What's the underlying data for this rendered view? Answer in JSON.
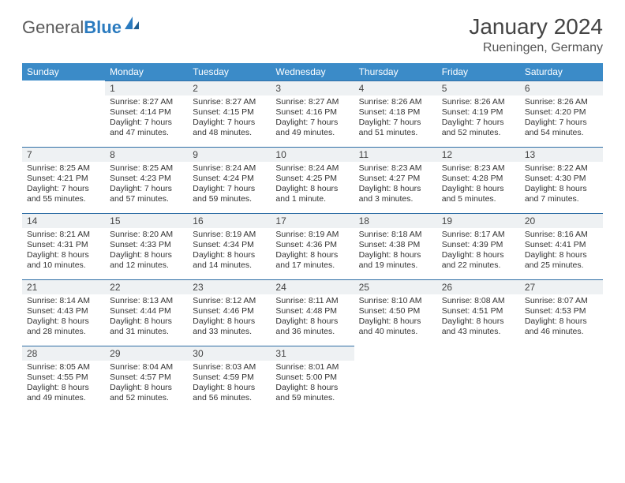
{
  "logo": {
    "part1": "General",
    "part2": "Blue"
  },
  "title": "January 2024",
  "location": "Rueningen, Germany",
  "colors": {
    "header_bg": "#3b8bc8",
    "header_text": "#ffffff",
    "daynum_bg": "#eef1f3",
    "daynum_border": "#2f6ea5",
    "text": "#333333",
    "logo_gray": "#5a5a5a",
    "logo_blue": "#2b7bbf"
  },
  "weekdays": [
    "Sunday",
    "Monday",
    "Tuesday",
    "Wednesday",
    "Thursday",
    "Friday",
    "Saturday"
  ],
  "firstDayIndex": 1,
  "daysInMonth": 31,
  "days": {
    "1": {
      "sunrise": "8:27 AM",
      "sunset": "4:14 PM",
      "daylight": "7 hours and 47 minutes."
    },
    "2": {
      "sunrise": "8:27 AM",
      "sunset": "4:15 PM",
      "daylight": "7 hours and 48 minutes."
    },
    "3": {
      "sunrise": "8:27 AM",
      "sunset": "4:16 PM",
      "daylight": "7 hours and 49 minutes."
    },
    "4": {
      "sunrise": "8:26 AM",
      "sunset": "4:18 PM",
      "daylight": "7 hours and 51 minutes."
    },
    "5": {
      "sunrise": "8:26 AM",
      "sunset": "4:19 PM",
      "daylight": "7 hours and 52 minutes."
    },
    "6": {
      "sunrise": "8:26 AM",
      "sunset": "4:20 PM",
      "daylight": "7 hours and 54 minutes."
    },
    "7": {
      "sunrise": "8:25 AM",
      "sunset": "4:21 PM",
      "daylight": "7 hours and 55 minutes."
    },
    "8": {
      "sunrise": "8:25 AM",
      "sunset": "4:23 PM",
      "daylight": "7 hours and 57 minutes."
    },
    "9": {
      "sunrise": "8:24 AM",
      "sunset": "4:24 PM",
      "daylight": "7 hours and 59 minutes."
    },
    "10": {
      "sunrise": "8:24 AM",
      "sunset": "4:25 PM",
      "daylight": "8 hours and 1 minute."
    },
    "11": {
      "sunrise": "8:23 AM",
      "sunset": "4:27 PM",
      "daylight": "8 hours and 3 minutes."
    },
    "12": {
      "sunrise": "8:23 AM",
      "sunset": "4:28 PM",
      "daylight": "8 hours and 5 minutes."
    },
    "13": {
      "sunrise": "8:22 AM",
      "sunset": "4:30 PM",
      "daylight": "8 hours and 7 minutes."
    },
    "14": {
      "sunrise": "8:21 AM",
      "sunset": "4:31 PM",
      "daylight": "8 hours and 10 minutes."
    },
    "15": {
      "sunrise": "8:20 AM",
      "sunset": "4:33 PM",
      "daylight": "8 hours and 12 minutes."
    },
    "16": {
      "sunrise": "8:19 AM",
      "sunset": "4:34 PM",
      "daylight": "8 hours and 14 minutes."
    },
    "17": {
      "sunrise": "8:19 AM",
      "sunset": "4:36 PM",
      "daylight": "8 hours and 17 minutes."
    },
    "18": {
      "sunrise": "8:18 AM",
      "sunset": "4:38 PM",
      "daylight": "8 hours and 19 minutes."
    },
    "19": {
      "sunrise": "8:17 AM",
      "sunset": "4:39 PM",
      "daylight": "8 hours and 22 minutes."
    },
    "20": {
      "sunrise": "8:16 AM",
      "sunset": "4:41 PM",
      "daylight": "8 hours and 25 minutes."
    },
    "21": {
      "sunrise": "8:14 AM",
      "sunset": "4:43 PM",
      "daylight": "8 hours and 28 minutes."
    },
    "22": {
      "sunrise": "8:13 AM",
      "sunset": "4:44 PM",
      "daylight": "8 hours and 31 minutes."
    },
    "23": {
      "sunrise": "8:12 AM",
      "sunset": "4:46 PM",
      "daylight": "8 hours and 33 minutes."
    },
    "24": {
      "sunrise": "8:11 AM",
      "sunset": "4:48 PM",
      "daylight": "8 hours and 36 minutes."
    },
    "25": {
      "sunrise": "8:10 AM",
      "sunset": "4:50 PM",
      "daylight": "8 hours and 40 minutes."
    },
    "26": {
      "sunrise": "8:08 AM",
      "sunset": "4:51 PM",
      "daylight": "8 hours and 43 minutes."
    },
    "27": {
      "sunrise": "8:07 AM",
      "sunset": "4:53 PM",
      "daylight": "8 hours and 46 minutes."
    },
    "28": {
      "sunrise": "8:05 AM",
      "sunset": "4:55 PM",
      "daylight": "8 hours and 49 minutes."
    },
    "29": {
      "sunrise": "8:04 AM",
      "sunset": "4:57 PM",
      "daylight": "8 hours and 52 minutes."
    },
    "30": {
      "sunrise": "8:03 AM",
      "sunset": "4:59 PM",
      "daylight": "8 hours and 56 minutes."
    },
    "31": {
      "sunrise": "8:01 AM",
      "sunset": "5:00 PM",
      "daylight": "8 hours and 59 minutes."
    }
  },
  "labels": {
    "sunrise": "Sunrise: ",
    "sunset": "Sunset: ",
    "daylight": "Daylight: "
  }
}
